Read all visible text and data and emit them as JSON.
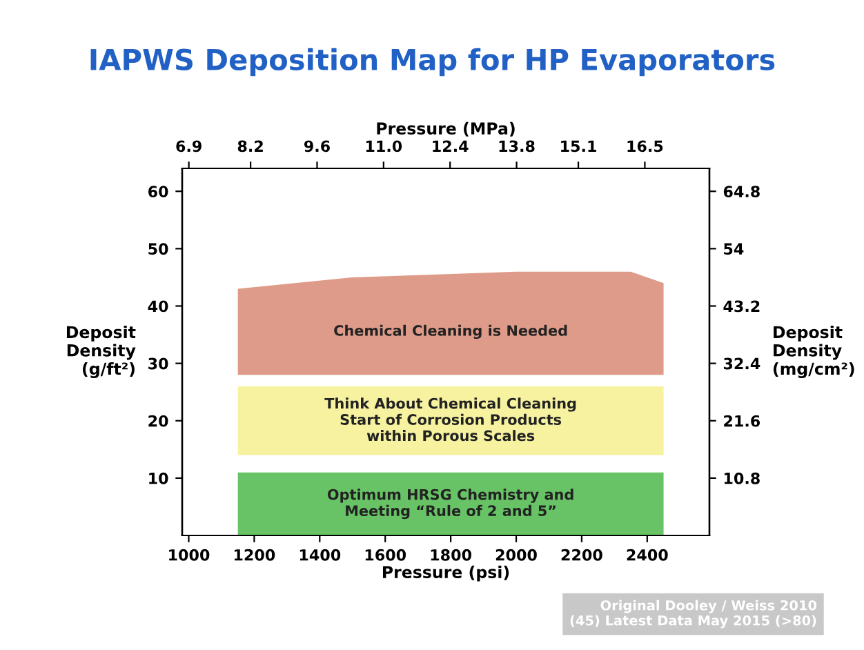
{
  "chart_data": {
    "type": "area",
    "stacked": true,
    "title": "IAPWS Deposition Map for HP Evaporators",
    "xlabel": "Pressure (psi)",
    "x2label": "Pressure (MPa)",
    "ylabel": "Deposit\nDensity\n(g/ft²)",
    "y2label": "Deposit\nDensity\n(mg/cm²)",
    "xlim": [
      980,
      2590
    ],
    "xticks": [
      1000,
      1200,
      1400,
      1600,
      1800,
      2000,
      2200,
      2400
    ],
    "x2lim": [
      6.76,
      17.86
    ],
    "x2ticks": [
      6.9,
      8.2,
      9.6,
      {
        "value": 11.0,
        "label": "11.0"
      },
      12.4,
      13.8,
      15.1,
      16.5
    ],
    "ylim": [
      0,
      64
    ],
    "yticks": [
      10,
      20,
      30,
      40,
      50,
      60
    ],
    "y2lim": [
      0,
      69.12
    ],
    "y2ticks": [
      10.8,
      21.6,
      32.4,
      43.2,
      54,
      64.8
    ],
    "x": [
      1150,
      1500,
      2000,
      2350,
      2450
    ],
    "series": [
      {
        "color": "#4cb84a",
        "values": [
          11,
          11,
          11,
          11,
          11
        ]
      },
      {
        "color": "#ffffff",
        "values": [
          3,
          3,
          3,
          3,
          3
        ]
      },
      {
        "color": "#f4f08e",
        "values": [
          12,
          12,
          12,
          12,
          12
        ]
      },
      {
        "color": "#ffffff",
        "values": [
          2,
          2,
          2,
          2,
          2
        ]
      },
      {
        "color": "#d98a74",
        "values": [
          15,
          17,
          18,
          18,
          16
        ]
      }
    ],
    "annotations": [
      "Optimum HRSG Chemistry and\nMeeting “Rule of 2 and 5”",
      null,
      "Think About Chemical Cleaning\nStart of Corrosion Products\nwithin Porous Scales",
      null,
      "Chemical Cleaning is Needed",
      "Original Dooley / Weiss 2010\n(45) Latest Data May 2015 (>80)"
    ]
  }
}
